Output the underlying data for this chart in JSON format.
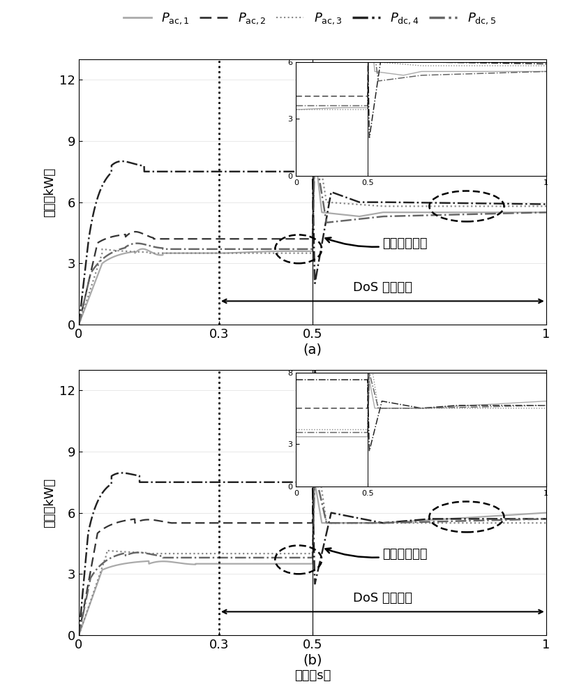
{
  "fig_width": 8.07,
  "fig_height": 10.0,
  "dpi": 100,
  "bg_color": "#ffffff",
  "legend_labels": [
    "$P_{\\mathrm{ac,1}}$",
    "$P_{\\mathrm{ac,2}}$",
    "$P_{\\mathrm{ac,3}}$",
    "$P_{\\mathrm{dc,4}}$",
    "$P_{\\mathrm{dc,5}}$"
  ],
  "ylabel": "功率（kW）",
  "xlabel": "时间（s）",
  "dos_text": "DoS 攻击发生",
  "load_text": "负载功率增加",
  "subplot_a_label": "(a)",
  "subplot_b_label": "(b)"
}
